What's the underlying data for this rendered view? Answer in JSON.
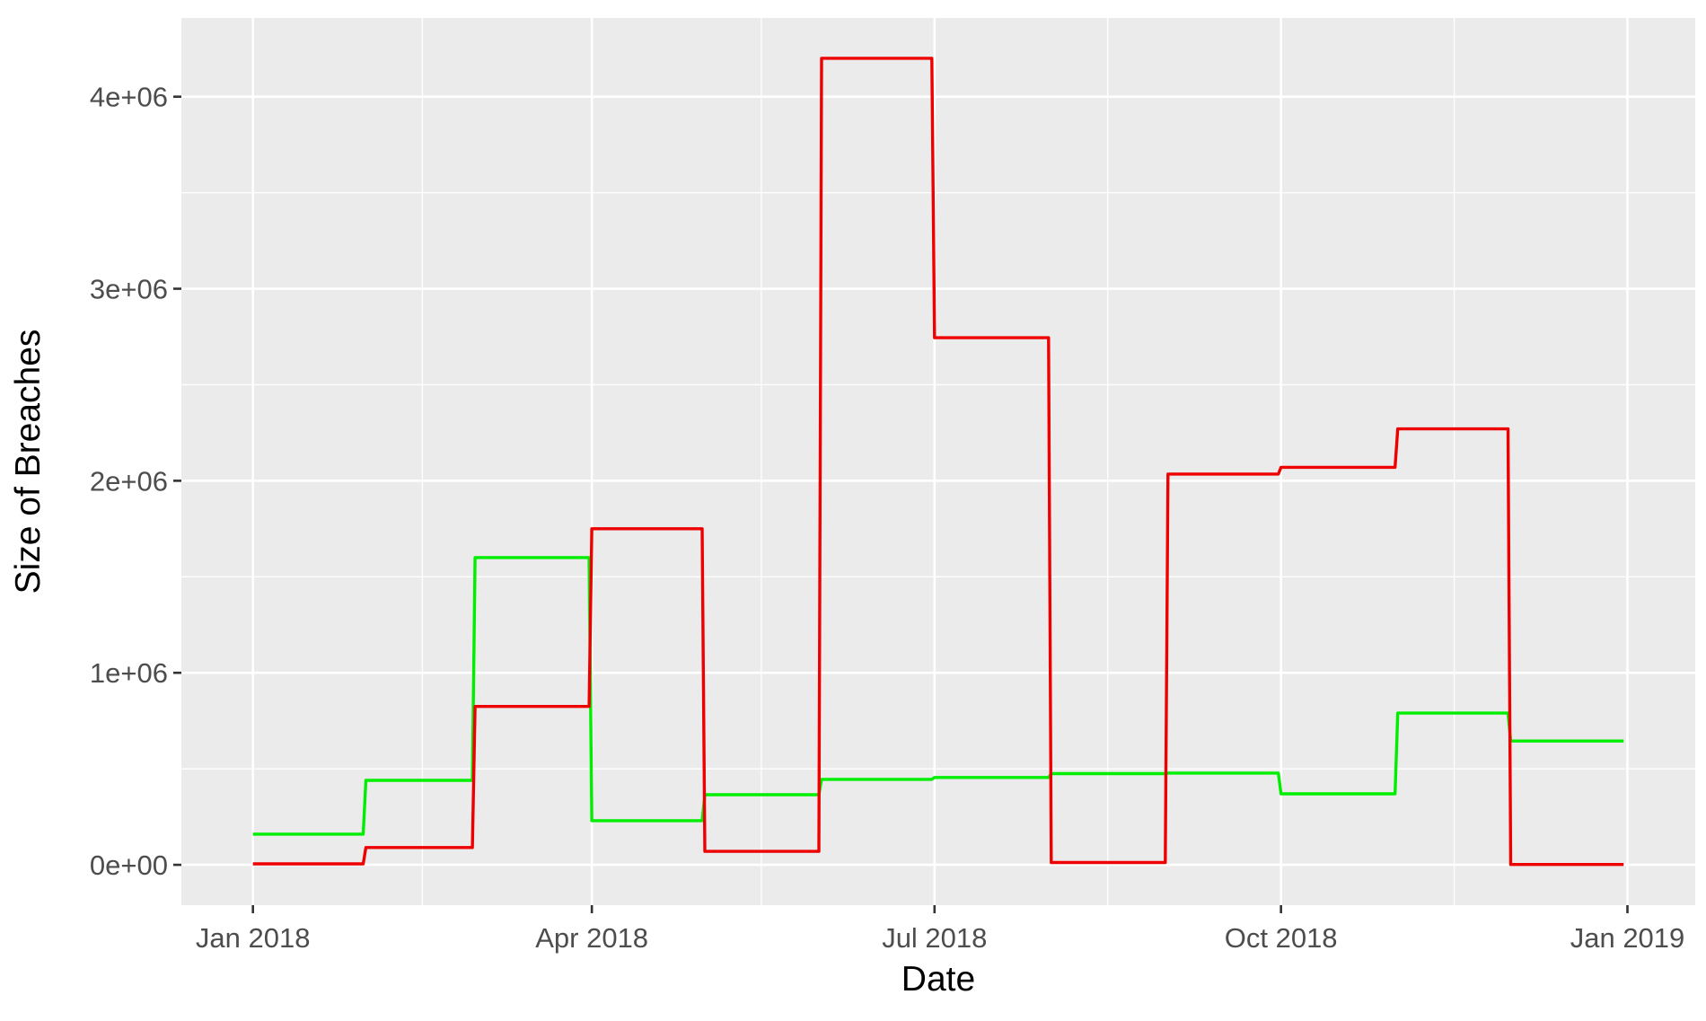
{
  "chart_data": {
    "type": "line",
    "step": true,
    "xlabel": "Date",
    "ylabel": "Size of Breaches",
    "x_ticks": [
      "Jan 2018",
      "Apr 2018",
      "Jul 2018",
      "Oct 2018",
      "Jan 2019"
    ],
    "x_tick_dates": [
      "2018-01-01",
      "2018-04-01",
      "2018-07-01",
      "2018-10-01",
      "2019-01-01"
    ],
    "x_minor_dates": [
      "2018-02-15",
      "2018-05-16",
      "2018-08-16",
      "2018-11-16"
    ],
    "xlim": [
      "2017-12-13",
      "2019-01-19"
    ],
    "y_ticks": [
      "0e+00",
      "1e+06",
      "2e+06",
      "3e+06",
      "4e+06"
    ],
    "y_tick_values": [
      0,
      1000000,
      2000000,
      3000000,
      4000000
    ],
    "ylim": [
      -210000,
      4410000
    ],
    "grid": true,
    "x": [
      "2018-01-01",
      "2018-01-31",
      "2018-03-01",
      "2018-04-01",
      "2018-05-01",
      "2018-06-01",
      "2018-07-01",
      "2018-08-01",
      "2018-09-01",
      "2018-10-01",
      "2018-11-01",
      "2018-12-01",
      "2018-12-31"
    ],
    "series": [
      {
        "color": "#00ee00",
        "values": [
          160000,
          440000,
          1600000,
          230000,
          365000,
          445000,
          455000,
          475000,
          478000,
          370000,
          790000,
          645000,
          645000
        ]
      },
      {
        "color": "#ee0000",
        "values": [
          5000,
          90000,
          825000,
          1750000,
          70000,
          4200000,
          2745000,
          12000,
          2035000,
          2070000,
          2270000,
          2000,
          2000
        ]
      }
    ]
  }
}
